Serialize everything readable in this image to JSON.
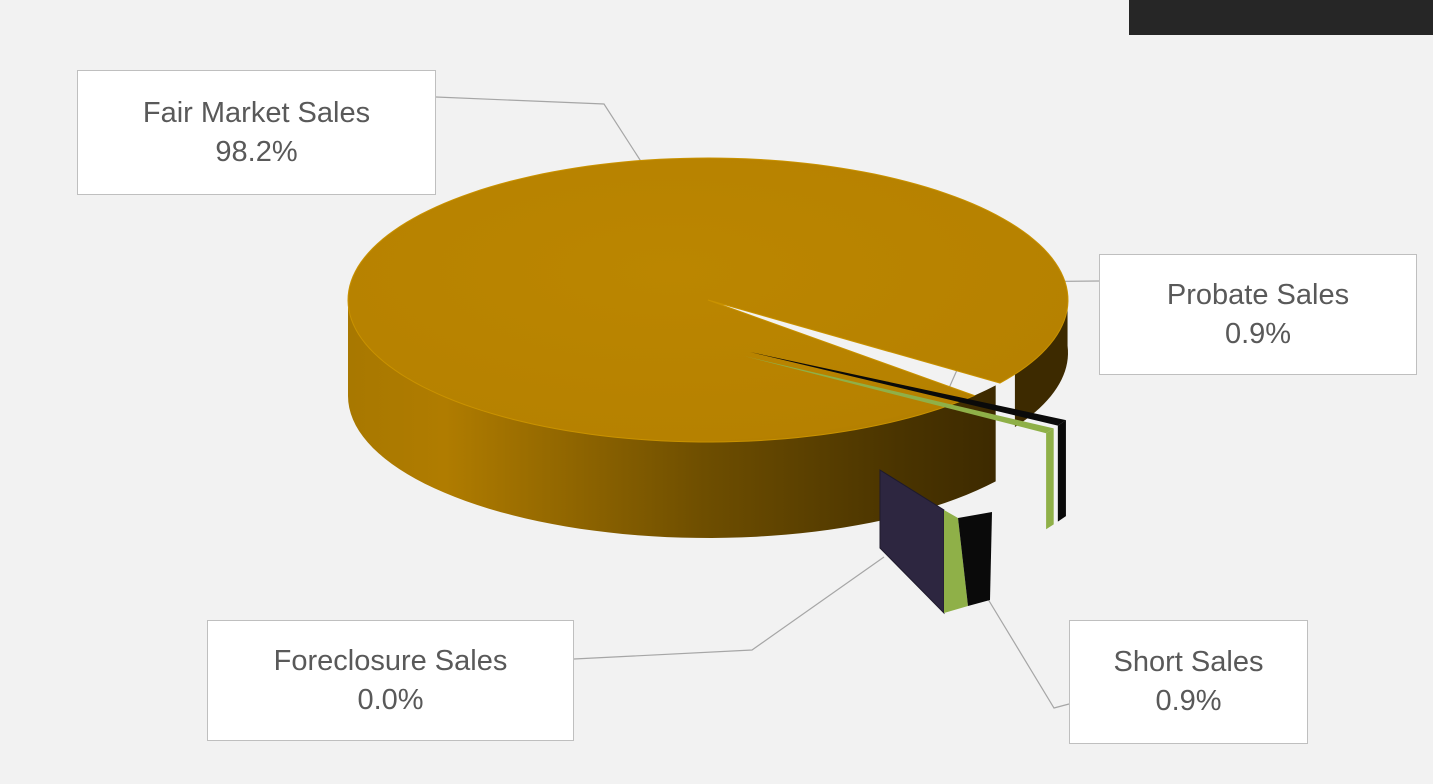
{
  "chart_data": {
    "type": "pie",
    "style": "3d",
    "categories": [
      "Fair Market Sales",
      "Probate Sales",
      "Short Sales",
      "Foreclosure Sales"
    ],
    "values": [
      98.2,
      0.9,
      0.9,
      0.0
    ],
    "value_labels": [
      "98.2%",
      "0.9%",
      "0.9%",
      "0.0%"
    ],
    "colors": [
      "#b88300",
      "#0a0a0a",
      "#8fb048",
      "#2d2640"
    ],
    "legend": "none"
  },
  "labels": {
    "fair_market": {
      "name": "Fair Market Sales",
      "value": "98.2%"
    },
    "probate": {
      "name": "Probate Sales",
      "value": "0.9%"
    },
    "foreclosure": {
      "name": "Foreclosure Sales",
      "value": "0.0%"
    },
    "short": {
      "name": "Short Sales",
      "value": "0.9%"
    }
  }
}
